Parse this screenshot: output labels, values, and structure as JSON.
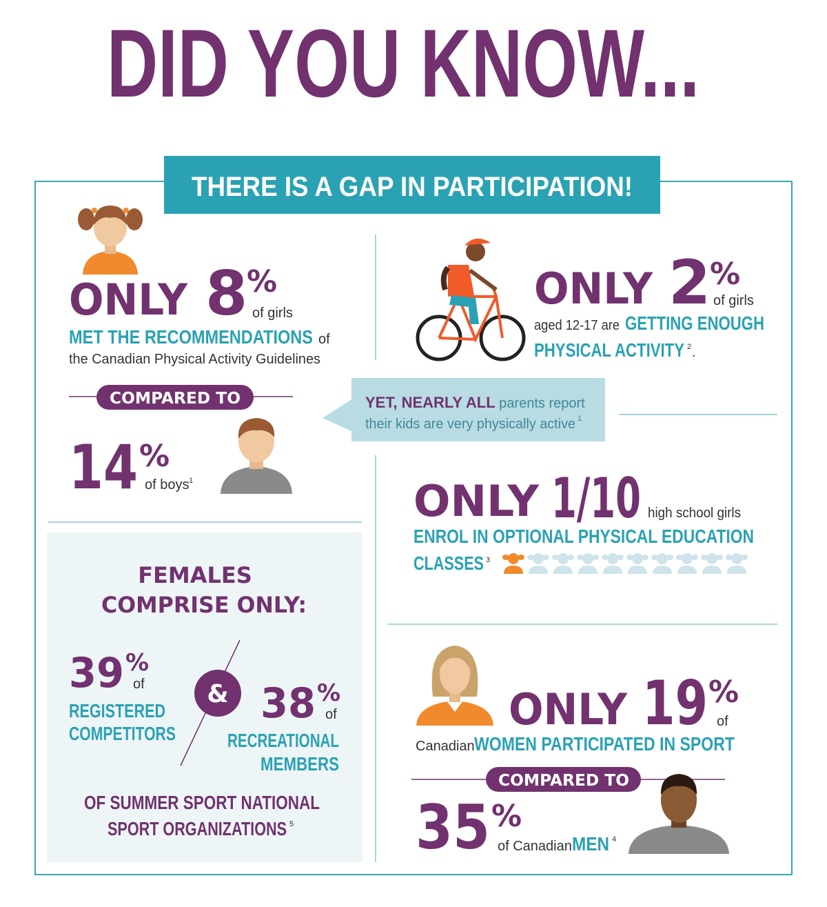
{
  "title": "DID YOU KNOW...",
  "banner": "THERE IS A GAP IN PARTICIPATION!",
  "girls_guidelines": {
    "lead": "ONLY",
    "number": "8",
    "unit": "%",
    "suffix": "of girls",
    "highlight": "MET THE RECOMMENDATIONS",
    "connector": "of",
    "detail": "the Canadian Physical Activity Guidelines"
  },
  "girls_boys_compare": "COMPARED TO",
  "boys_guidelines": {
    "number": "14",
    "unit": "%",
    "suffix": "of boys",
    "ref": "1"
  },
  "parents_callout": {
    "highlight": "YET, NEARLY ALL",
    "line1": "parents report",
    "line2": "their kids are very physically active",
    "ref": "1"
  },
  "girls_activity": {
    "lead": "ONLY",
    "number": "2",
    "unit": "%",
    "suffix": "of girls",
    "prefix": "aged 12-17 are",
    "highlight_1": "GETTING ENOUGH",
    "highlight_2": "PHYSICAL ACTIVITY",
    "ref": "2",
    "end": "."
  },
  "pe_classes": {
    "lead": "ONLY",
    "fraction": "1/10",
    "suffix": "high school girls",
    "highlight_1": "ENROL IN OPTIONAL PHYSICAL EDUCATION",
    "highlight_2": "CLASSES",
    "ref": "3"
  },
  "females_nso": {
    "heading_1": "FEMALES",
    "heading_2": "COMPRISE ONLY:",
    "competitors": {
      "number": "39",
      "unit": "%",
      "suffix": "of",
      "label_1": "REGISTERED",
      "label_2": "COMPETITORS"
    },
    "joiner": "&",
    "recreational": {
      "number": "38",
      "unit": "%",
      "suffix": "of",
      "label_1": "RECREATIONAL",
      "label_2": "MEMBERS"
    },
    "footer_1": "OF SUMMER SPORT NATIONAL",
    "footer_2": "SPORT ORGANIZATIONS",
    "ref": "5"
  },
  "women_sport": {
    "lead": "ONLY",
    "number": "19",
    "unit": "%",
    "suffix": "of",
    "prefix": "Canadian",
    "highlight": "WOMEN PARTICIPATED IN SPORT"
  },
  "women_men_compare": "COMPARED TO",
  "men_sport": {
    "number": "35",
    "unit": "%",
    "suffix": "of Canadian",
    "highlight": "MEN",
    "ref": "4"
  }
}
